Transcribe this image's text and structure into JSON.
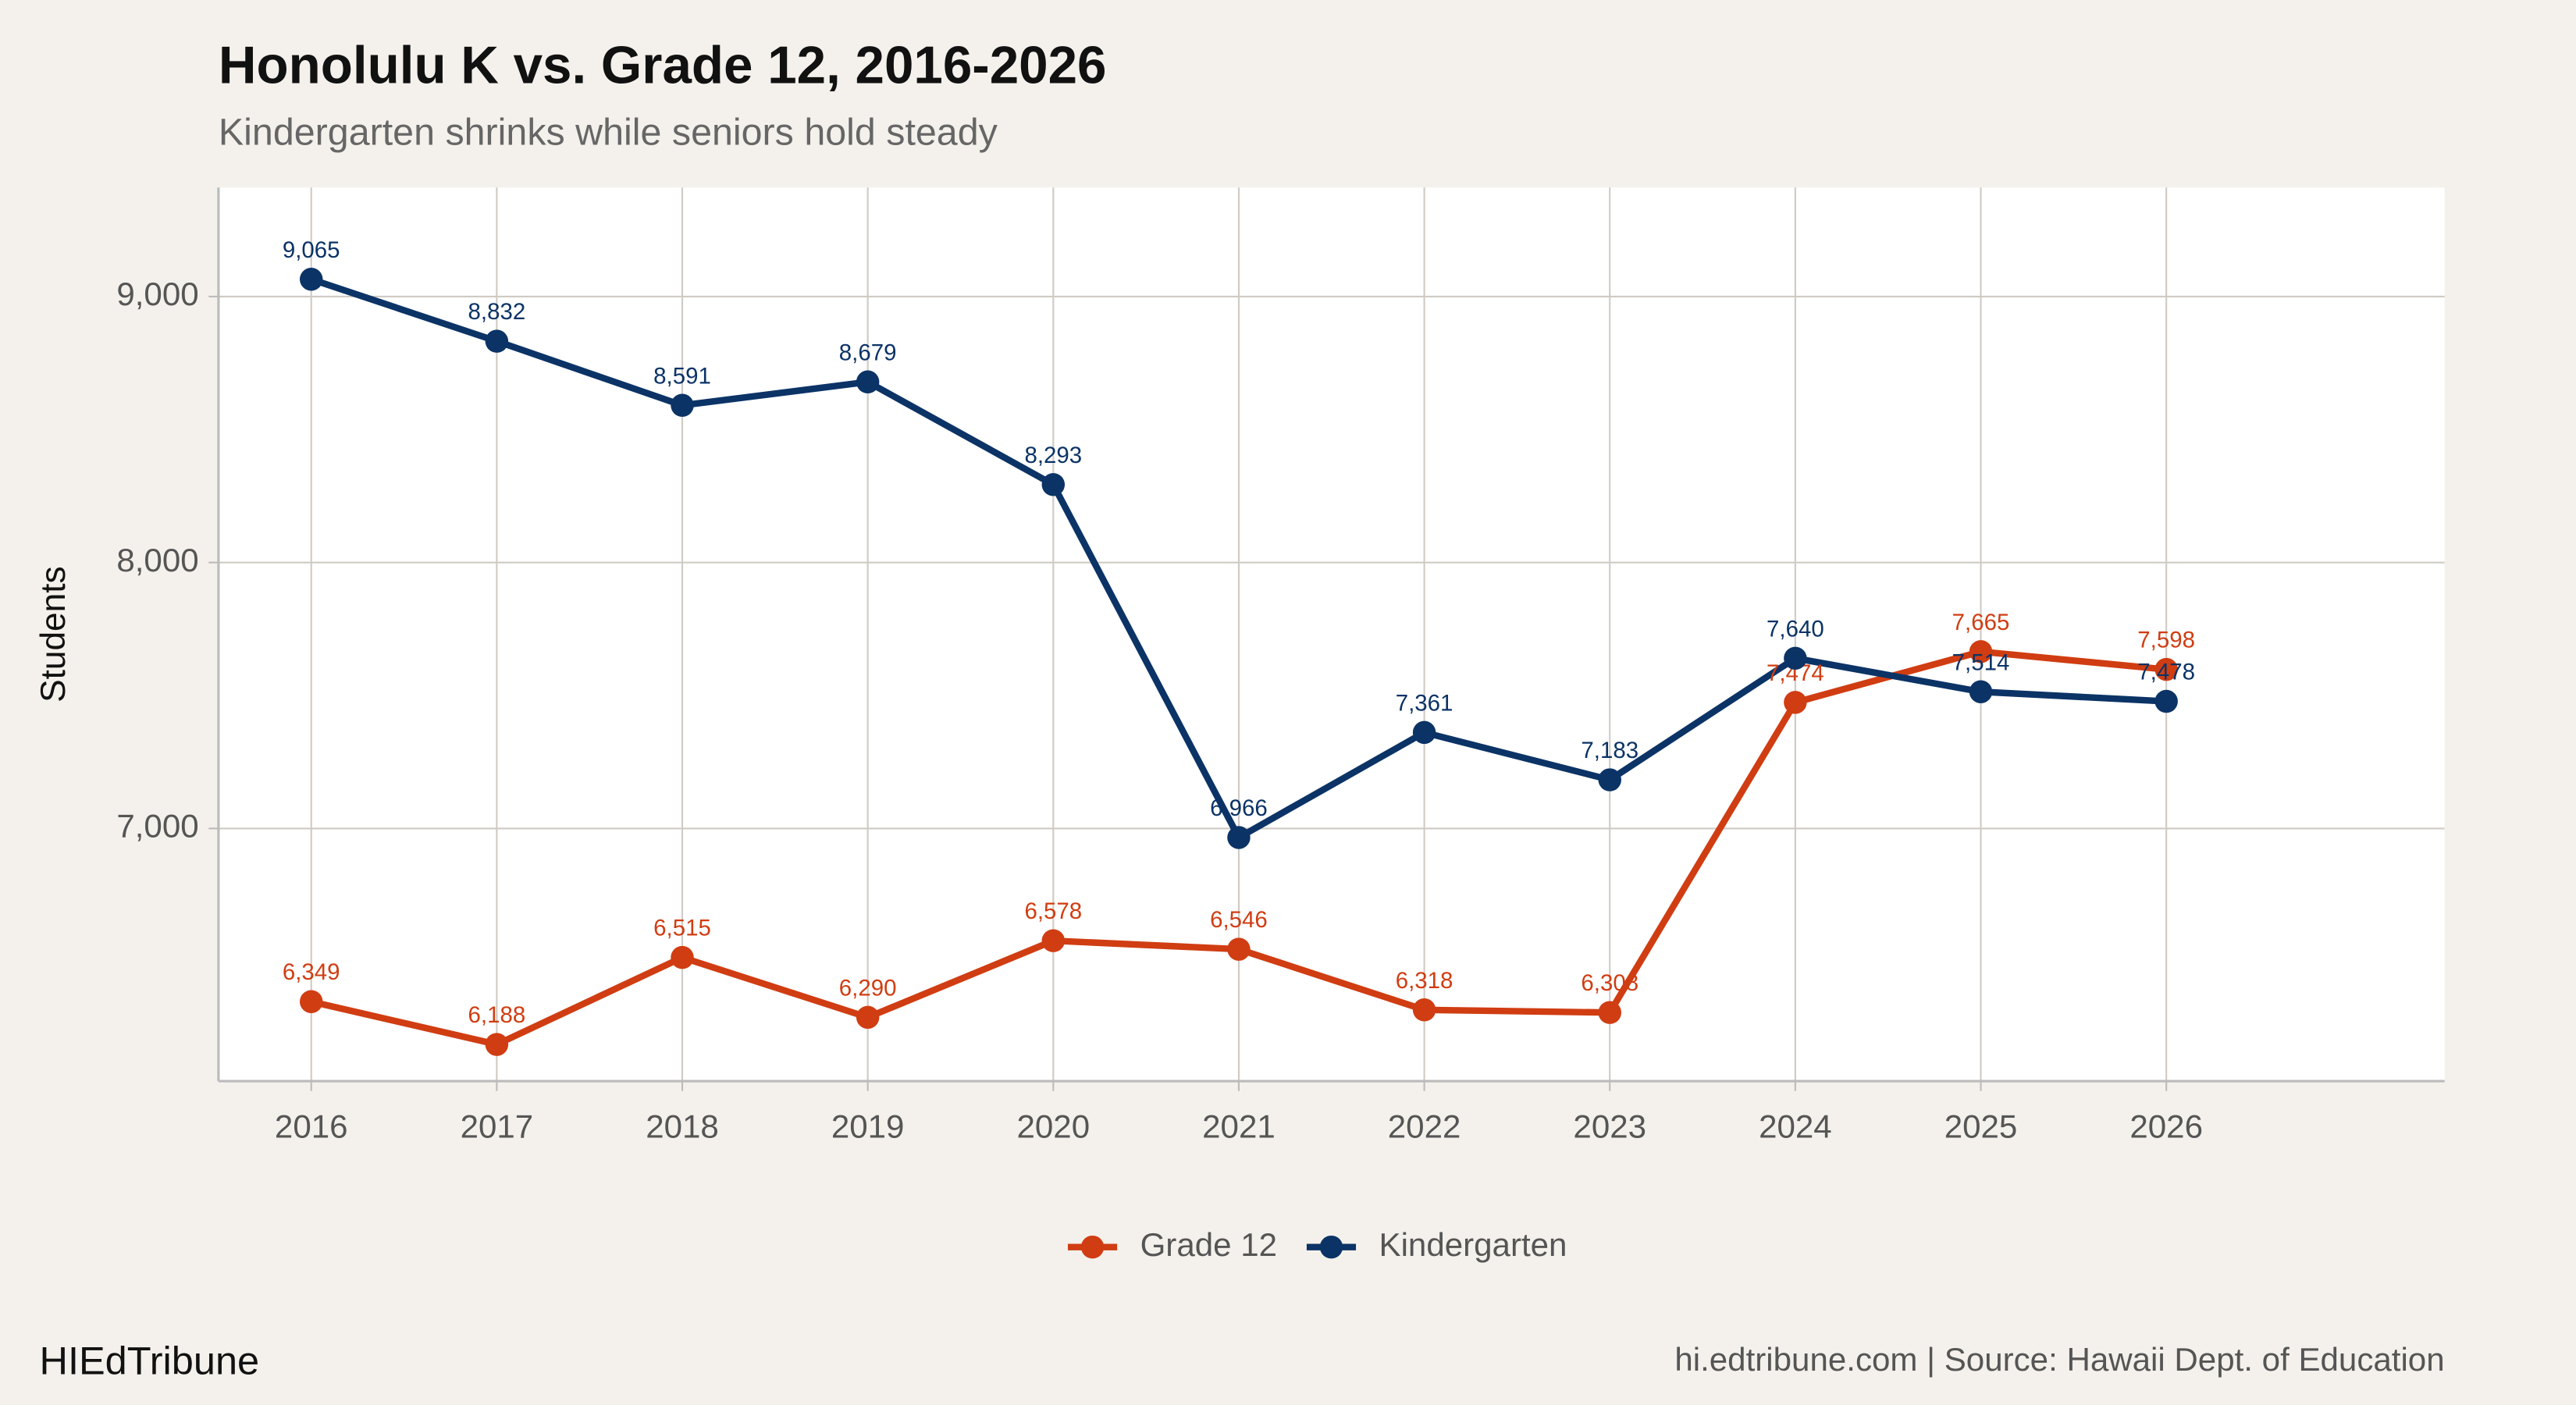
{
  "chart_data": {
    "type": "line",
    "title": "Honolulu K vs. Grade 12, 2016-2026",
    "subtitle": "Kindergarten shrinks while seniors hold steady",
    "y_label": "Students",
    "x": [
      2016,
      2017,
      2018,
      2019,
      2020,
      2021,
      2022,
      2023,
      2024,
      2025,
      2026
    ],
    "xlim": [
      2015.5,
      2027.5
    ],
    "xticks": [
      2016,
      2017,
      2018,
      2019,
      2020,
      2021,
      2022,
      2023,
      2024,
      2025,
      2026
    ],
    "ylim": [
      6050,
      9410
    ],
    "yticks": [
      {
        "value": 7000,
        "label": "7,000"
      },
      {
        "value": 8000,
        "label": "8,000"
      },
      {
        "value": 9000,
        "label": "9,000"
      }
    ],
    "grid": true,
    "legend": "bottom",
    "series": [
      {
        "name": "Grade 12",
        "color": "#d03d12",
        "values": [
          6349,
          6188,
          6515,
          6290,
          6578,
          6546,
          6318,
          6308,
          7474,
          7665,
          7598
        ],
        "value_labels": [
          "6,349",
          "6,188",
          "6,515",
          "6,290",
          "6,578",
          "6,546",
          "6,318",
          "6,308",
          "7,474",
          "7,665",
          "7,598"
        ]
      },
      {
        "name": "Kindergarten",
        "color": "#0b3366",
        "values": [
          9065,
          8832,
          8591,
          8679,
          8293,
          6966,
          7361,
          7183,
          7640,
          7514,
          7478
        ],
        "value_labels": [
          "9,065",
          "8,832",
          "8,591",
          "8,679",
          "8,293",
          "6,966",
          "7,361",
          "7,183",
          "7,640",
          "7,514",
          "7,478"
        ]
      }
    ],
    "footer_left": "HIEdTribune",
    "footer_right": "hi.edtribune.com | Source: Hawaii Dept. of Education"
  }
}
